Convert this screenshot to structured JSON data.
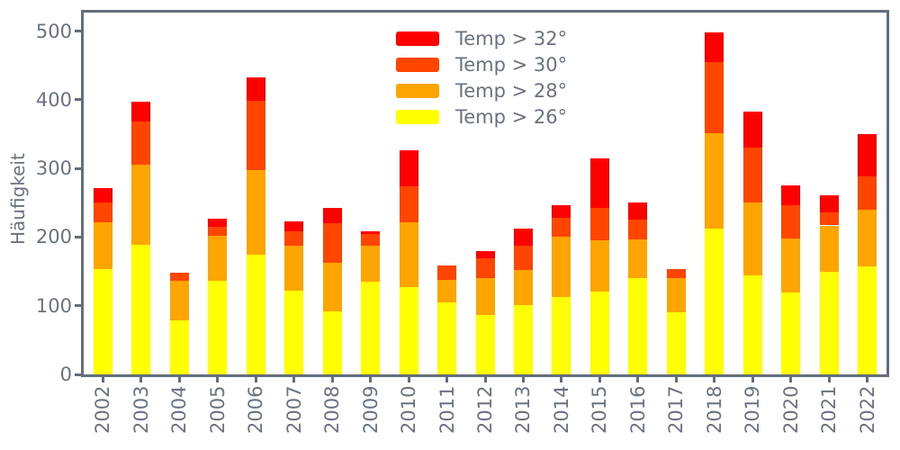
{
  "figure": {
    "ylabel": "Häufigkeit",
    "colors": {
      "background": "#ffffff",
      "axis": "#656d7a",
      "text": "#6a7280"
    }
  },
  "chart_data": {
    "type": "bar",
    "stacked": true,
    "title": "",
    "xlabel": "",
    "ylabel": "Häufigkeit",
    "categories": [
      "2002",
      "2003",
      "2004",
      "2005",
      "2006",
      "2007",
      "2008",
      "2009",
      "2010",
      "2011",
      "2012",
      "2013",
      "2014",
      "2015",
      "2016",
      "2017",
      "2018",
      "2019",
      "2020",
      "2021",
      "2022"
    ],
    "series": [
      {
        "name": "Temp > 26°",
        "color": "#ffff00",
        "values": [
          154,
          189,
          79,
          137,
          175,
          122,
          92,
          135,
          127,
          105,
          86,
          101,
          113,
          120,
          140,
          90,
          213,
          144,
          119,
          150,
          157
        ]
      },
      {
        "name": "Temp > 28°",
        "color": "#ffa500",
        "values": [
          68,
          116,
          58,
          65,
          123,
          66,
          71,
          52,
          94,
          33,
          54,
          51,
          88,
          76,
          57,
          50,
          139,
          106,
          79,
          67,
          83
        ]
      },
      {
        "name": "Temp > 30°",
        "color": "#ff4500",
        "values": [
          29,
          63,
          11,
          13,
          100,
          21,
          57,
          18,
          53,
          21,
          29,
          36,
          27,
          46,
          29,
          13,
          103,
          80,
          49,
          19,
          48
        ]
      },
      {
        "name": "Temp > 32°",
        "color": "#ff0000",
        "values": [
          20,
          29,
          0,
          12,
          34,
          14,
          23,
          4,
          52,
          0,
          11,
          24,
          19,
          72,
          25,
          0,
          43,
          53,
          28,
          25,
          62
        ]
      }
    ],
    "legend": {
      "position": "upper center",
      "entries": [
        "Temp > 32°",
        "Temp > 30°",
        "Temp > 28°",
        "Temp > 26°"
      ]
    },
    "ylim": [
      0,
      527
    ],
    "yticks": [
      0,
      100,
      200,
      300,
      400,
      500
    ],
    "grid": false
  }
}
